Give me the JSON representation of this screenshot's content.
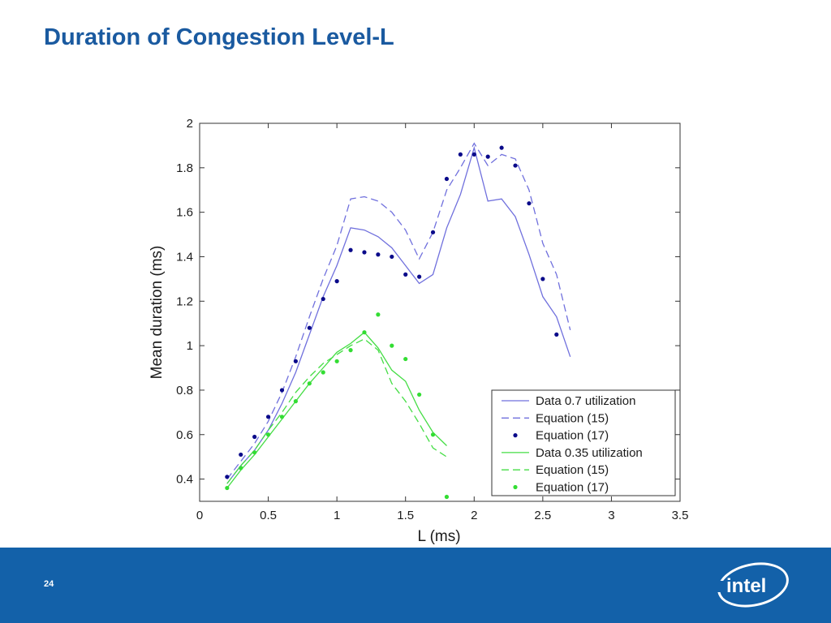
{
  "slide": {
    "title": "Duration of Congestion Level-L",
    "page_number": "24",
    "logo_text": "intel",
    "footer_color": "#1361a9",
    "title_color": "#1a5aa0"
  },
  "chart_data": {
    "type": "line",
    "xlabel": "L (ms)",
    "ylabel": "Mean duration (ms)",
    "xlim": [
      0,
      3.5
    ],
    "ylim": [
      0.3,
      2.0
    ],
    "xticks": [
      "0",
      "0.5",
      "1",
      "1.5",
      "2",
      "2.5",
      "3",
      "3.5"
    ],
    "xtick_values": [
      0,
      0.5,
      1,
      1.5,
      2,
      2.5,
      3,
      3.5
    ],
    "yticks": [
      "0.4",
      "0.6",
      "0.8",
      "1",
      "1.2",
      "1.4",
      "1.6",
      "1.8",
      "2"
    ],
    "ytick_values": [
      0.4,
      0.6,
      0.8,
      1.0,
      1.2,
      1.4,
      1.6,
      1.8,
      2.0
    ],
    "grid": false,
    "legend_position": "bottom-right",
    "series": [
      {
        "name": "Data 0.7 utilization",
        "style": "solid",
        "color": "#7070dd",
        "x": [
          0.2,
          0.3,
          0.4,
          0.5,
          0.6,
          0.7,
          0.8,
          0.9,
          1.0,
          1.1,
          1.2,
          1.3,
          1.4,
          1.5,
          1.6,
          1.7,
          1.8,
          1.9,
          2.0,
          2.1,
          2.2,
          2.3,
          2.4,
          2.5,
          2.6,
          2.7
        ],
        "y": [
          0.38,
          0.46,
          0.53,
          0.62,
          0.74,
          0.88,
          1.05,
          1.22,
          1.36,
          1.53,
          1.52,
          1.49,
          1.44,
          1.36,
          1.28,
          1.32,
          1.53,
          1.68,
          1.89,
          1.65,
          1.66,
          1.58,
          1.41,
          1.22,
          1.13,
          0.95
        ]
      },
      {
        "name": "Equation (15)",
        "style": "dashed",
        "color": "#7070dd",
        "x": [
          0.2,
          0.3,
          0.4,
          0.5,
          0.6,
          0.7,
          0.8,
          0.9,
          1.0,
          1.1,
          1.2,
          1.3,
          1.4,
          1.5,
          1.6,
          1.7,
          1.8,
          1.9,
          2.0,
          2.1,
          2.2,
          2.3,
          2.4,
          2.5,
          2.6,
          2.7
        ],
        "y": [
          0.4,
          0.48,
          0.56,
          0.66,
          0.79,
          0.95,
          1.13,
          1.3,
          1.45,
          1.66,
          1.67,
          1.65,
          1.6,
          1.52,
          1.39,
          1.51,
          1.7,
          1.8,
          1.91,
          1.81,
          1.86,
          1.84,
          1.7,
          1.46,
          1.32,
          1.07
        ]
      },
      {
        "name": "Equation (17)",
        "style": "dots",
        "color": "#0a0a8a",
        "x": [
          0.2,
          0.3,
          0.4,
          0.5,
          0.6,
          0.7,
          0.8,
          0.9,
          1.0,
          1.1,
          1.2,
          1.3,
          1.4,
          1.5,
          1.6,
          1.7,
          1.8,
          1.9,
          2.0,
          2.1,
          2.2,
          2.3,
          2.4,
          2.5,
          2.6
        ],
        "y": [
          0.41,
          0.51,
          0.59,
          0.68,
          0.8,
          0.93,
          1.08,
          1.21,
          1.29,
          1.43,
          1.42,
          1.41,
          1.4,
          1.32,
          1.31,
          1.51,
          1.75,
          1.86,
          1.86,
          1.85,
          1.89,
          1.81,
          1.64,
          1.3,
          1.05
        ]
      },
      {
        "name": "Data 0.35 utilization",
        "style": "solid",
        "color": "#44dd44",
        "x": [
          0.2,
          0.3,
          0.4,
          0.5,
          0.6,
          0.7,
          0.8,
          0.9,
          1.0,
          1.1,
          1.2,
          1.3,
          1.4,
          1.5,
          1.6,
          1.7,
          1.8
        ],
        "y": [
          0.36,
          0.44,
          0.51,
          0.59,
          0.67,
          0.75,
          0.83,
          0.9,
          0.97,
          1.01,
          1.06,
          0.99,
          0.89,
          0.84,
          0.71,
          0.61,
          0.55
        ]
      },
      {
        "name": "Equation (15)",
        "style": "dashed",
        "color": "#44dd44",
        "x": [
          0.2,
          0.3,
          0.4,
          0.5,
          0.6,
          0.7,
          0.8,
          0.9,
          1.0,
          1.1,
          1.2,
          1.3,
          1.4,
          1.5,
          1.6,
          1.7,
          1.8
        ],
        "y": [
          0.38,
          0.46,
          0.53,
          0.62,
          0.7,
          0.79,
          0.86,
          0.92,
          0.96,
          1.0,
          1.03,
          0.98,
          0.83,
          0.75,
          0.65,
          0.54,
          0.5
        ]
      },
      {
        "name": "Equation (17)",
        "style": "dots",
        "color": "#33dd33",
        "x": [
          0.2,
          0.3,
          0.4,
          0.5,
          0.6,
          0.7,
          0.8,
          0.9,
          1.0,
          1.1,
          1.2,
          1.3,
          1.4,
          1.5,
          1.6,
          1.7,
          1.8
        ],
        "y": [
          0.36,
          0.45,
          0.52,
          0.6,
          0.68,
          0.75,
          0.83,
          0.88,
          0.93,
          0.98,
          1.06,
          1.14,
          1.0,
          0.94,
          0.78,
          0.6,
          0.32
        ]
      }
    ]
  }
}
